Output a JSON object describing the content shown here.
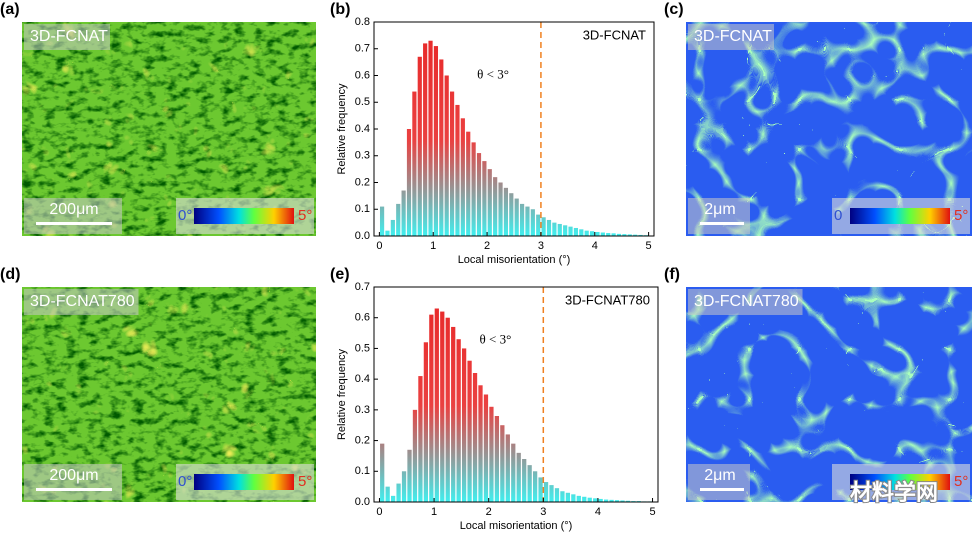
{
  "images": [
    {
      "panel": "(a)",
      "label": "3D-FCNAT",
      "scale": "200μm",
      "colorbar": [
        "0°",
        "5°"
      ],
      "kind": "ipf"
    },
    {
      "panel": "(c)",
      "label": "3D-FCNAT",
      "scale": "2μm",
      "colorbar": [
        "0",
        "5°"
      ],
      "kind": "kam"
    },
    {
      "panel": "(d)",
      "label": "3D-FCNAT780",
      "scale": "200μm",
      "colorbar": [
        "0°",
        "5°"
      ],
      "kind": "ipf"
    },
    {
      "panel": "(f)",
      "label": "3D-FCNAT780",
      "scale": "2μm",
      "colorbar": [
        "5°"
      ],
      "kind": "kam"
    }
  ],
  "watermark": "材料学网",
  "chart_data": [
    {
      "type": "histogram",
      "panel": "(b)",
      "series_label": "3D-FCNAT",
      "annotation": "θ < 3°",
      "threshold": 3,
      "xlabel": "Local misorientation (°)",
      "ylabel": "Relative frequency",
      "bins": [
        0,
        0.1,
        0.2,
        0.3,
        0.4,
        0.5,
        0.6,
        0.7,
        0.8,
        0.9,
        1,
        1.1,
        1.2,
        1.3,
        1.4,
        1.5,
        1.6,
        1.7,
        1.8,
        1.9,
        2,
        2.1,
        2.2,
        2.3,
        2.4,
        2.5,
        2.6,
        2.7,
        2.8,
        2.9,
        3,
        3.1,
        3.2,
        3.3,
        3.4,
        3.5,
        3.6,
        3.7,
        3.8,
        3.9,
        4,
        4.1,
        4.2,
        4.3,
        4.4,
        4.5,
        4.6,
        4.7,
        4.8,
        4.9,
        5
      ],
      "counts": [
        0.11,
        0.02,
        0.06,
        0.12,
        0.17,
        0.4,
        0.54,
        0.67,
        0.72,
        0.73,
        0.71,
        0.66,
        0.6,
        0.54,
        0.49,
        0.44,
        0.39,
        0.35,
        0.31,
        0.28,
        0.25,
        0.22,
        0.2,
        0.18,
        0.16,
        0.14,
        0.12,
        0.11,
        0.1,
        0.08,
        0.07,
        0.06,
        0.05,
        0.045,
        0.04,
        0.035,
        0.03,
        0.025,
        0.02,
        0.018,
        0.015,
        0.013,
        0.011,
        0.01,
        0.008,
        0.007,
        0.006,
        0.005,
        0.004,
        0.003
      ],
      "xlim": [
        -0.1,
        5.1
      ],
      "ylim": [
        0,
        0.8
      ],
      "xticks": [
        0,
        1,
        2,
        3,
        4,
        5
      ],
      "yticks": [
        0.0,
        0.1,
        0.2,
        0.3,
        0.4,
        0.5,
        0.6,
        0.7,
        0.8
      ],
      "colors": [
        "#e82b2b",
        "#3ff0f0"
      ]
    },
    {
      "type": "histogram",
      "panel": "(e)",
      "series_label": "3D-FCNAT780",
      "annotation": "θ < 3°",
      "threshold": 3,
      "xlabel": "Local misorientation (°)",
      "ylabel": "Relative frequency",
      "bins": [
        0,
        0.1,
        0.2,
        0.3,
        0.4,
        0.5,
        0.6,
        0.7,
        0.8,
        0.9,
        1,
        1.1,
        1.2,
        1.3,
        1.4,
        1.5,
        1.6,
        1.7,
        1.8,
        1.9,
        2,
        2.1,
        2.2,
        2.3,
        2.4,
        2.5,
        2.6,
        2.7,
        2.8,
        2.9,
        3,
        3.1,
        3.2,
        3.3,
        3.4,
        3.5,
        3.6,
        3.7,
        3.8,
        3.9,
        4,
        4.1,
        4.2,
        4.3,
        4.4,
        4.5,
        4.6,
        4.7,
        4.8,
        4.9,
        5
      ],
      "counts": [
        0.19,
        0.05,
        0.02,
        0.06,
        0.1,
        0.17,
        0.3,
        0.41,
        0.52,
        0.61,
        0.63,
        0.62,
        0.6,
        0.57,
        0.53,
        0.5,
        0.46,
        0.42,
        0.38,
        0.35,
        0.31,
        0.28,
        0.25,
        0.22,
        0.19,
        0.16,
        0.14,
        0.12,
        0.1,
        0.08,
        0.065,
        0.055,
        0.045,
        0.035,
        0.03,
        0.025,
        0.02,
        0.017,
        0.014,
        0.012,
        0.01,
        0.008,
        0.007,
        0.006,
        0.005,
        0.004,
        0.003,
        0.003,
        0.002,
        0.002
      ],
      "xlim": [
        -0.1,
        5.1
      ],
      "ylim": [
        0,
        0.7
      ],
      "xticks": [
        0,
        1,
        2,
        3,
        4,
        5
      ],
      "yticks": [
        0.0,
        0.1,
        0.2,
        0.3,
        0.4,
        0.5,
        0.6,
        0.7
      ],
      "colors": [
        "#e82b2b",
        "#3ff0f0"
      ]
    }
  ]
}
